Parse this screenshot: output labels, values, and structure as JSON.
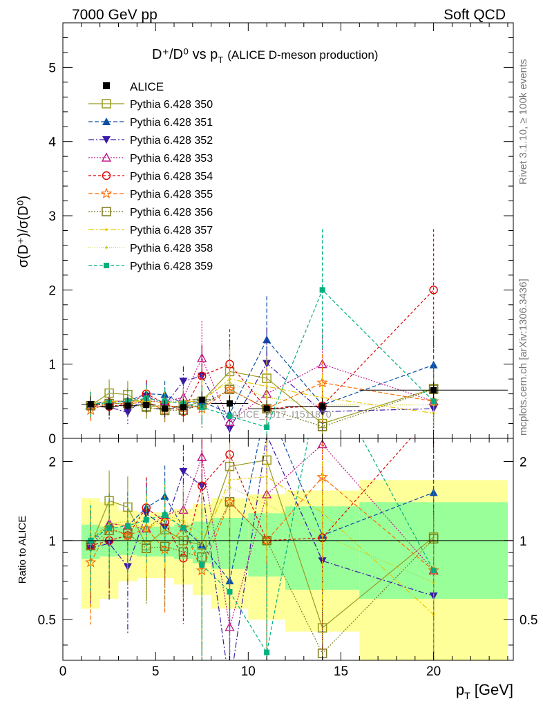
{
  "header": {
    "energy": "7000 GeV pp",
    "process": "Soft QCD",
    "title_main": "D⁺/D⁰ vs p",
    "title_sub_T": "T",
    "title_note": "(ALICE D-meson production)"
  },
  "side": {
    "rivet": "Rivet 3.1.10, ≥ 100k events",
    "mcplots": "mcplots.cern.ch [arXiv:1306.3436]"
  },
  "watermark": "ALICE_2017_I1511870",
  "axes": {
    "main_ylabel": "σ(D⁺)/σ(D⁰)",
    "ratio_ylabel": "Ratio to ALICE",
    "xlabel": "p_T [GeV]",
    "xticks": [
      "0",
      "5",
      "10",
      "15",
      "20"
    ],
    "main_yticks": [
      "0",
      "1",
      "2",
      "3",
      "4",
      "5"
    ],
    "ratio_yticks": [
      "0.5",
      "1",
      "2"
    ]
  },
  "colors": {
    "data": "#000000",
    "band_inner": "#99ff99",
    "band_outer": "#ffff99",
    "s350": "#9a9a1e",
    "s351": "#0d4fa6",
    "s352": "#3a1aa6",
    "s353": "#c01a8a",
    "s354": "#e00000",
    "s355": "#ff6a00",
    "s356": "#7a7a1a",
    "s357": "#e6c800",
    "s358": "#c8c81e",
    "s359": "#00b080"
  },
  "chart_data": {
    "type": "scatter",
    "x_bins": [
      [
        1,
        2
      ],
      [
        2,
        3
      ],
      [
        3,
        4
      ],
      [
        4,
        5
      ],
      [
        5,
        6
      ],
      [
        6,
        7
      ],
      [
        7,
        8
      ],
      [
        8,
        10
      ],
      [
        10,
        12
      ],
      [
        12,
        16
      ],
      [
        16,
        24
      ]
    ],
    "x": [
      1.5,
      2.5,
      3.5,
      4.5,
      5.5,
      6.5,
      7.5,
      9,
      11,
      14,
      20
    ],
    "xlim": [
      0,
      24.3
    ],
    "ylim_main": [
      0,
      5.6
    ],
    "ylim_ratio": [
      0.35,
      2.45
    ],
    "ratio_log": true,
    "data": {
      "name": "ALICE",
      "values": [
        0.46,
        0.43,
        0.44,
        0.45,
        0.4,
        0.42,
        0.52,
        0.47,
        0.4,
        0.43,
        0.65
      ],
      "band_stat": [
        0.15,
        0.13,
        0.12,
        0.13,
        0.13,
        0.15,
        0.18,
        0.22,
        0.27,
        0.35,
        0.4
      ],
      "band_total": [
        0.45,
        0.4,
        0.3,
        0.28,
        0.28,
        0.32,
        0.38,
        0.45,
        0.5,
        0.55,
        0.7
      ]
    },
    "series": [
      {
        "name": "Pythia 6.428 350",
        "key": "s350",
        "marker": "square-open",
        "dash": "",
        "values": [
          0.44,
          0.61,
          0.59,
          0.43,
          0.44,
          0.42,
          0.5,
          0.9,
          0.81,
          0.2,
          0.67
        ]
      },
      {
        "name": "Pythia 6.428 351",
        "key": "s351",
        "marker": "triangle-up",
        "dash": "6,3",
        "values": [
          0.46,
          0.5,
          0.5,
          0.6,
          0.59,
          0.47,
          0.5,
          0.33,
          1.33,
          0.45,
          0.99
        ]
      },
      {
        "name": "Pythia 6.428 352",
        "key": "s352",
        "marker": "triangle-down",
        "dash": "8,3,2,3",
        "values": [
          0.43,
          0.42,
          0.35,
          0.57,
          0.45,
          0.77,
          0.84,
          0.13,
          1.01,
          0.36,
          0.4
        ]
      },
      {
        "name": "Pythia 6.428 353",
        "key": "s353",
        "marker": "triangle-up-open",
        "dash": "2,2",
        "values": [
          0.44,
          0.5,
          0.5,
          0.5,
          0.5,
          0.55,
          1.08,
          0.22,
          0.6,
          1.0,
          0.5
        ]
      },
      {
        "name": "Pythia 6.428 354",
        "key": "s354",
        "marker": "circle-open",
        "dash": "4,3",
        "values": [
          0.44,
          0.43,
          0.46,
          0.6,
          0.47,
          0.36,
          0.84,
          1.0,
          0.4,
          0.44,
          2.0
        ]
      },
      {
        "name": "Pythia 6.428 355",
        "key": "s355",
        "marker": "star-open",
        "dash": "6,3",
        "values": [
          0.38,
          0.48,
          0.46,
          0.5,
          0.37,
          0.47,
          0.4,
          0.66,
          0.4,
          0.75,
          0.5
        ]
      },
      {
        "name": "Pythia 6.428 356",
        "key": "s356",
        "marker": "square-open",
        "dash": "2,2",
        "values": [
          0.44,
          0.47,
          0.47,
          0.42,
          0.38,
          0.38,
          0.45,
          0.66,
          0.4,
          0.16,
          0.66
        ]
      },
      {
        "name": "Pythia 6.428 357",
        "key": "s357",
        "marker": "dot",
        "dash": "8,3,2,3",
        "values": [
          0.46,
          0.5,
          0.5,
          0.5,
          0.48,
          0.5,
          0.5,
          0.8,
          0.7,
          0.55,
          0.34
        ]
      },
      {
        "name": "Pythia 6.428 358",
        "key": "s358",
        "marker": "dot",
        "dash": "1,2",
        "values": [
          0.48,
          0.5,
          0.52,
          0.5,
          0.5,
          0.5,
          0.55,
          0.75,
          0.55,
          0.45,
          0.45
        ]
      },
      {
        "name": "Pythia 6.428 359",
        "key": "s359",
        "marker": "square",
        "dash": "5,3",
        "values": [
          0.46,
          0.48,
          0.5,
          0.54,
          0.5,
          0.47,
          0.42,
          0.3,
          0.15,
          2.0,
          0.5
        ]
      }
    ]
  }
}
